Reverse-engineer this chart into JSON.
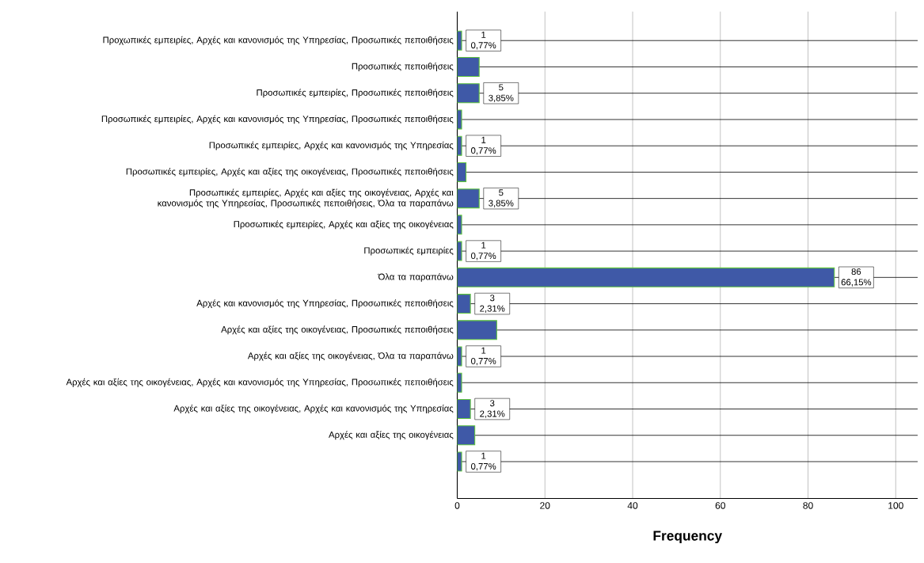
{
  "chart_data": {
    "type": "bar",
    "orientation": "horizontal",
    "xlabel": "Frequency",
    "categories": [
      "Προχωπικές εμπειρίες, Αρχές και κανονισμός της Υπηρεσίας, Προσωπικές πεποιθήσεις",
      "Προσωπικές πεποιθήσεις",
      "Προσωπικές εμπειρίες, Προσωπικές πεποιθήσεις",
      "Προσωπικές εμπειρίες, Αρχές και κανονισμός της Υπηρεσίας, Προσωπικές πεποιθήσεις",
      "Προσωπικές εμπειρίες, Αρχές και κανονισμός της Υπηρεσίας",
      "Προσωπικές εμπειρίες, Αρχές και αξίες της οικογένειας, Προσωπικές πεποιθήσεις",
      "Προσωπικές εμπειρίες, Αρχές και αξίες της οικογένειας, Αρχές και κανονισμός της Υπηρεσίας, Προσωπικές πεποιθήσεις, Όλα τα παραπάνω",
      "Προσωπικές εμπειρίες, Αρχές και αξίες της οικογένειας",
      "Προσωπικές εμπειρίες",
      "Όλα τα παραπάνω",
      "Αρχές και κανονισμός της Υπηρεσίας, Προσωπικές πεποιθήσεις",
      "Αρχές και αξίες της οικογένειας, Προσωπικές πεποιθήσεις",
      "Αρχές και αξίες της οικογένειας, Όλα τα παραπάνω",
      "Αρχές και αξίες της οικογένειας, Αρχές και κανονισμός της Υπηρεσίας, Προσωπικές πεποιθήσεις",
      "Αρχές και αξίες της οικογένειας, Αρχές και κανονισμός της Υπηρεσίας",
      "Αρχές και αξίες της οικογένειας",
      null
    ],
    "values": [
      1,
      5,
      5,
      1,
      1,
      2,
      5,
      1,
      1,
      86,
      3,
      9,
      1,
      1,
      3,
      4,
      1
    ],
    "value_labels": [
      "1 0,77%",
      null,
      "5 3,85%",
      null,
      "1 0,77%",
      null,
      "5 3,85%",
      null,
      "1 0,77%",
      "86 66,15%",
      "3 2,31%",
      null,
      "1 0,77%",
      null,
      "3 2,31%",
      null,
      "1 0,77%"
    ],
    "color": "#3f59a7",
    "xlim": [
      0,
      105
    ],
    "xticks": [
      0,
      20,
      40,
      60,
      80,
      100
    ],
    "grid": true
  }
}
